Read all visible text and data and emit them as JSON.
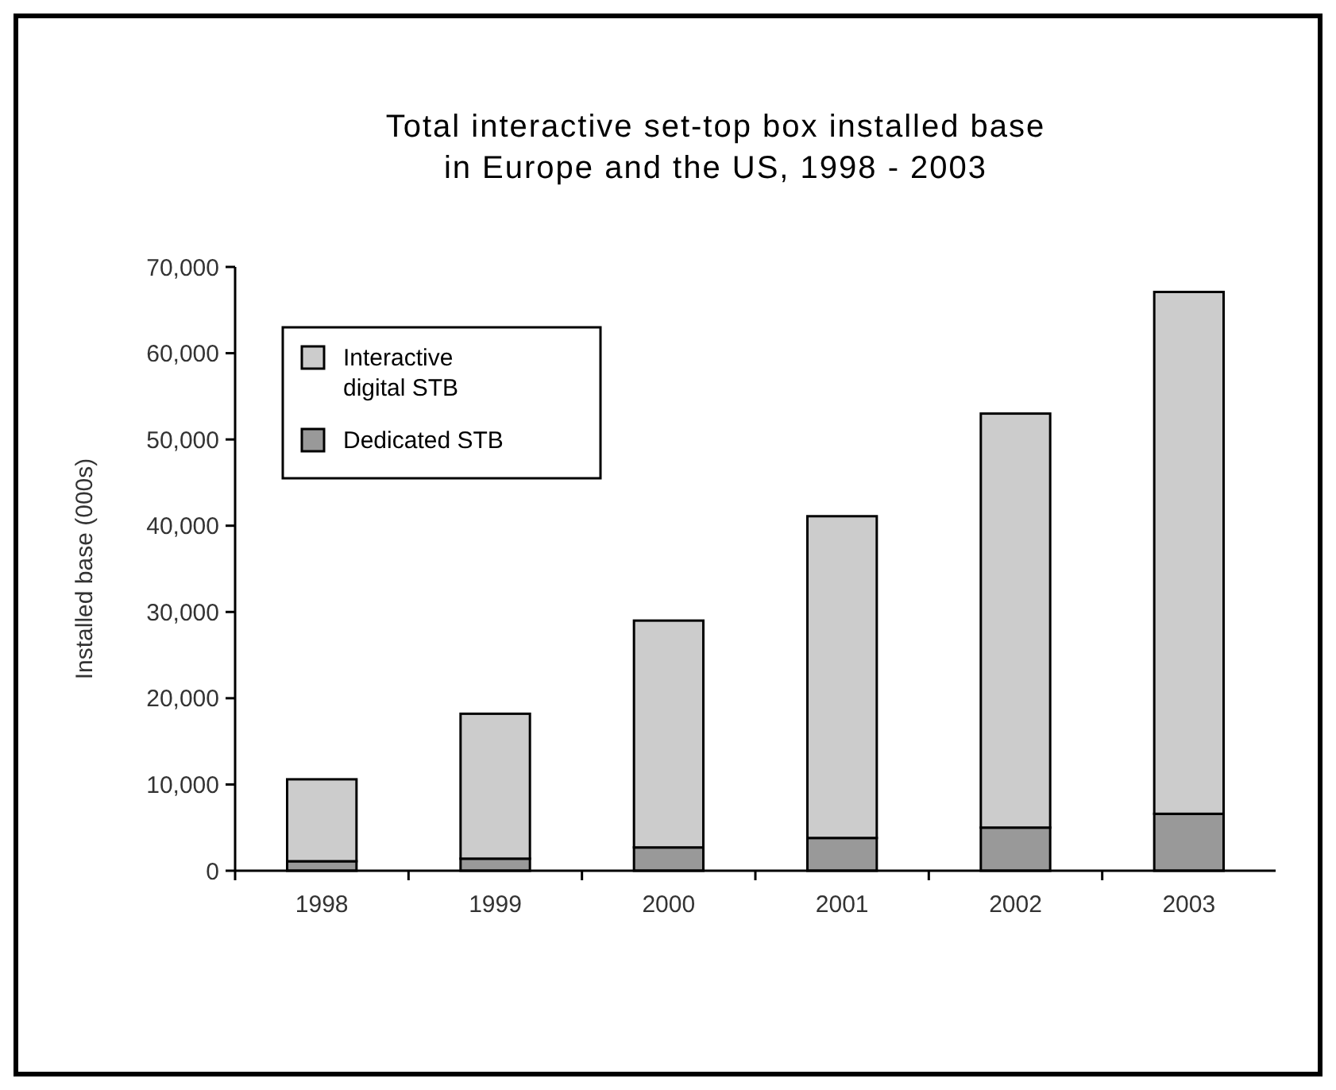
{
  "chart_data": {
    "type": "bar",
    "stacked": true,
    "title": "Total interactive set-top box installed base\nin Europe and the US, 1998 - 2003",
    "ylabel": "Installed base (000s)",
    "categories": [
      "1998",
      "1999",
      "2000",
      "2001",
      "2002",
      "2003"
    ],
    "series": [
      {
        "name": "Dedicated STB",
        "color": "#999999",
        "values": [
          1100,
          1400,
          2700,
          3800,
          5000,
          6600
        ]
      },
      {
        "name": "Interactive\ndigital STB",
        "color": "#cccccc",
        "values": [
          9500,
          16800,
          26300,
          37300,
          48000,
          60500
        ]
      }
    ],
    "ylim": [
      0,
      70000
    ],
    "yticks": [
      {
        "value": 0,
        "label": "0"
      },
      {
        "value": 10000,
        "label": "10,000"
      },
      {
        "value": 20000,
        "label": "20,000"
      },
      {
        "value": 30000,
        "label": "30,000"
      },
      {
        "value": 40000,
        "label": "40,000"
      },
      {
        "value": 50000,
        "label": "50,000"
      },
      {
        "value": 60000,
        "label": "60,000"
      },
      {
        "value": 70000,
        "label": "70,000"
      }
    ],
    "grid": false,
    "legend": "top left"
  }
}
